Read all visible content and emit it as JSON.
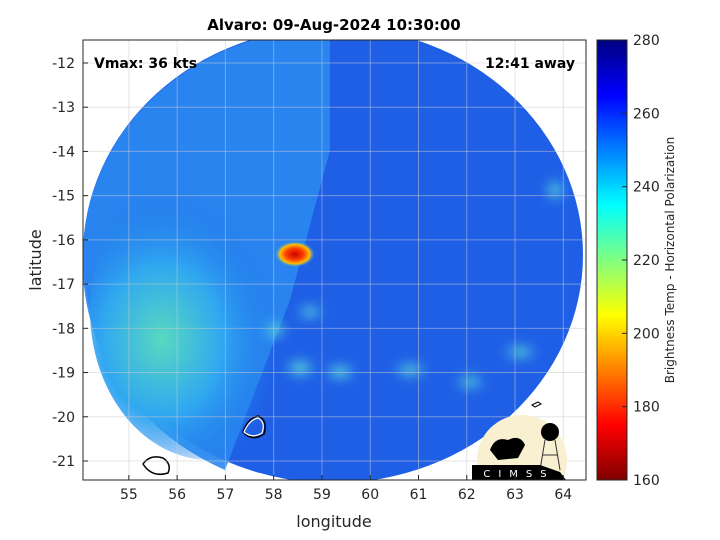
{
  "chart_data": {
    "type": "heatmap",
    "title": "Alvaro: 09-Aug-2024 10:30:00",
    "xlabel": "longitude",
    "ylabel": "latitude",
    "xlim": [
      54.05,
      64.47
    ],
    "ylim": [
      -21.43,
      -11.48
    ],
    "xticks": [
      "55",
      "56",
      "57",
      "58",
      "59",
      "60",
      "61",
      "62",
      "63",
      "64"
    ],
    "yticks": [
      "-12",
      "-13",
      "-14",
      "-15",
      "-16",
      "-17",
      "-18",
      "-19",
      "-20",
      "-21"
    ],
    "grid": true,
    "annotations": {
      "vmax": "Vmax: 36 kts",
      "away": "12:41 away"
    },
    "colorbar": {
      "label": "Brightness Temp - Horizontal Polarization",
      "range": [
        160,
        280
      ],
      "ticks": [
        "160",
        "180",
        "200",
        "220",
        "240",
        "260",
        "280"
      ],
      "colormap": "jet"
    },
    "features": {
      "warm_core": {
        "lon": 58.5,
        "lat": -16.3,
        "value": 180
      },
      "background_value": 262
    },
    "logo": "CIMSS"
  }
}
